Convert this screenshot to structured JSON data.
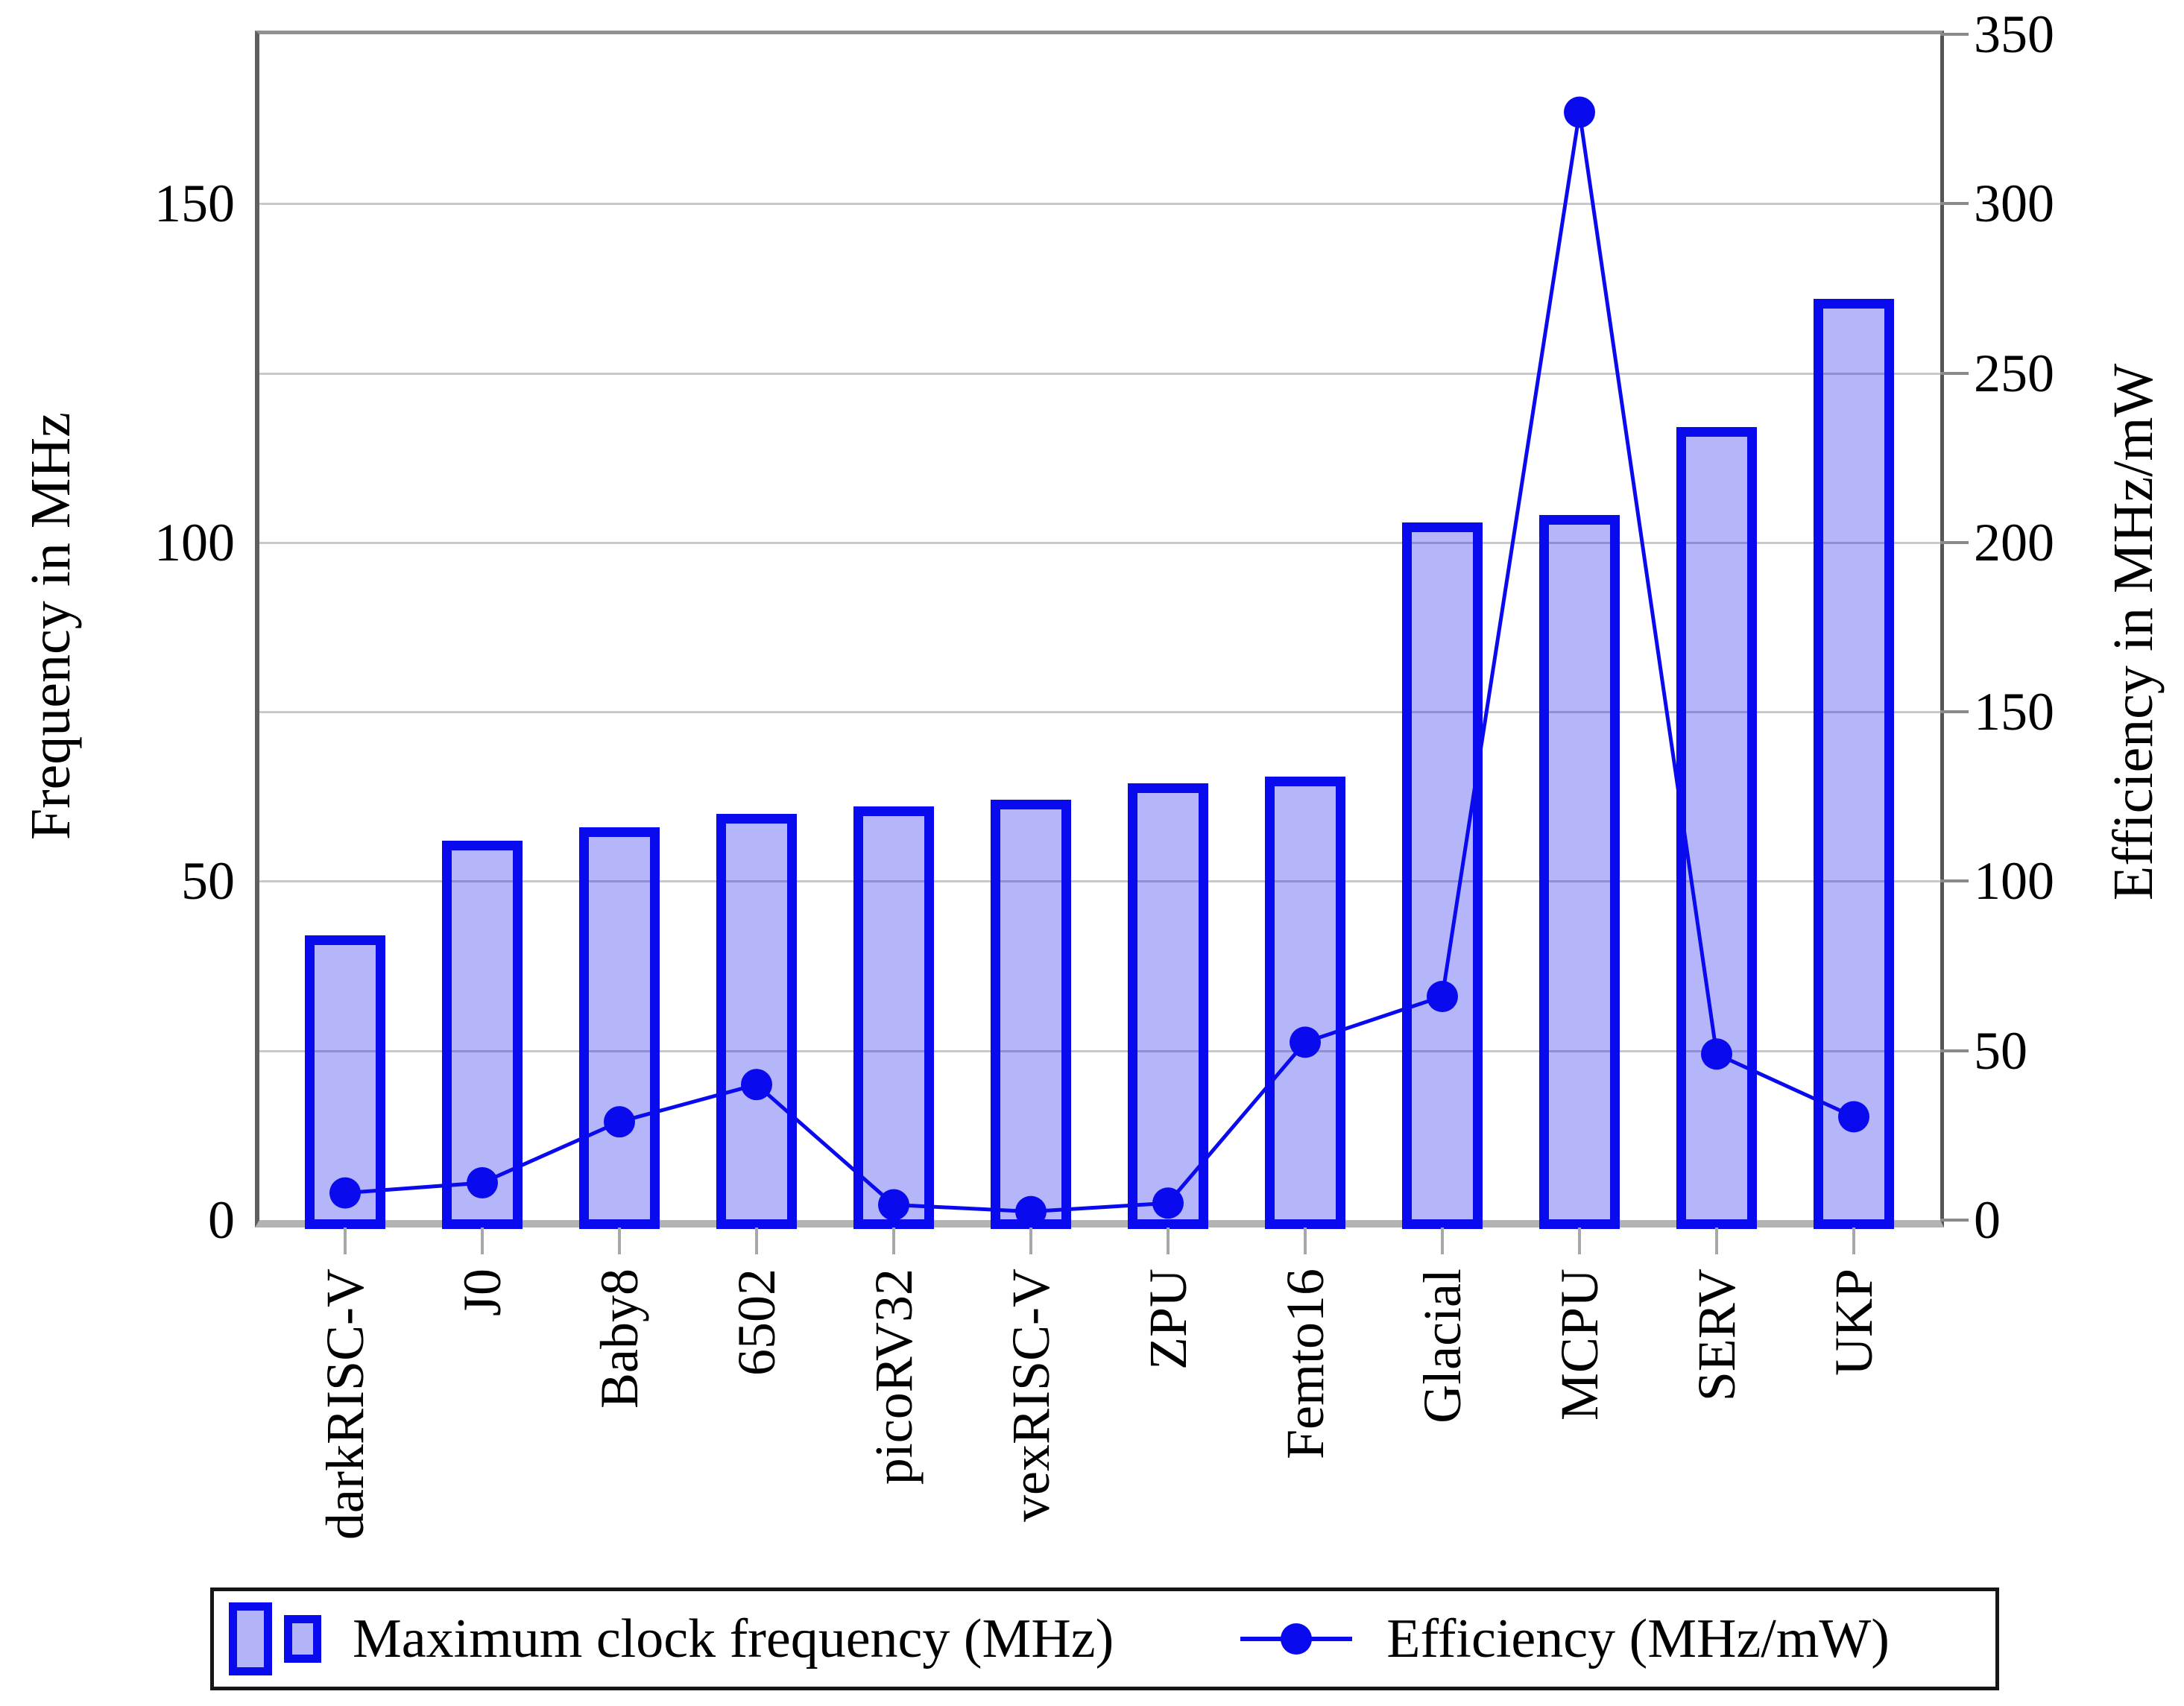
{
  "chart_data": {
    "type": "bar",
    "subtype": "dual-axis bar + line combo",
    "categories": [
      "darkRISC-V",
      "J0",
      "Baby8",
      "6502",
      "picoRV32",
      "vexRISC-V",
      "ZPU",
      "Femto16",
      "Glacial",
      "MCPU",
      "SERV",
      "UKP"
    ],
    "series": [
      {
        "name": "Maximum clock frequency (MHz)",
        "type": "bar",
        "axis": "left",
        "values": [
          42,
          56,
          58,
          60,
          61,
          62,
          64.5,
          65.5,
          103,
          104,
          117,
          136
        ]
      },
      {
        "name": "Efficiency (MHz/mW)",
        "type": "line",
        "axis": "right",
        "values": [
          8,
          11,
          29,
          40,
          4.5,
          2.5,
          5,
          52.5,
          66,
          327,
          49,
          30.5
        ]
      }
    ],
    "left_axis": {
      "label": "Frequency in MHz",
      "min": 0,
      "max": 175,
      "ticks": [
        0,
        50,
        100,
        150
      ]
    },
    "right_axis": {
      "label": "Efficiency in MHz/mW",
      "min": 0,
      "max": 350,
      "ticks": [
        0,
        50,
        100,
        150,
        200,
        250,
        300,
        350
      ]
    },
    "grid": true,
    "legend_position": "bottom"
  },
  "legend": {
    "bar_label": "Maximum clock frequency (MHz)",
    "line_label": "Efficiency (MHz/mW)"
  },
  "colors": {
    "bar_border": "#0a0aee",
    "bar_fill": "rgba(10,10,235,0.30)",
    "bar_fill_solid": "#b3b3f8",
    "line": "#0a0aee",
    "dot": "#0a0aee",
    "grid": "#c9c9c9",
    "x_tick": "#a8a8a8",
    "y_tick": "#8a8a8a",
    "text": "#000000",
    "legend_border": "#161616",
    "background": "#ffffff"
  }
}
